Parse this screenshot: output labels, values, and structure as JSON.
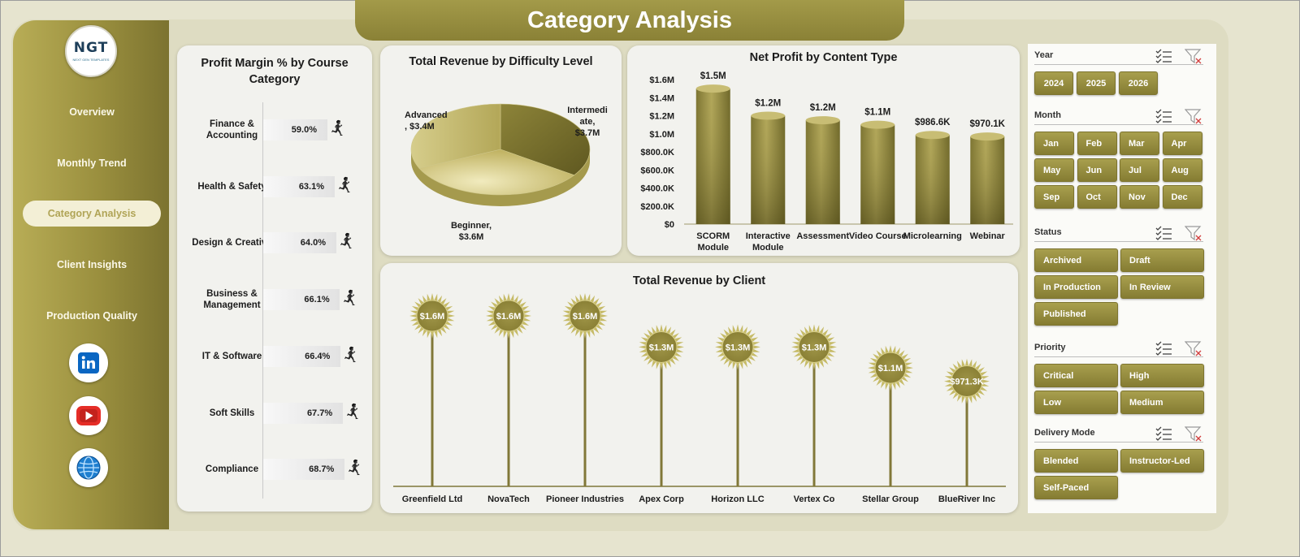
{
  "header": {
    "title": "Category Analysis"
  },
  "logo": {
    "text": "NGT",
    "subtext": "NEXT GEN TEMPLATES"
  },
  "sidebar": {
    "items": [
      {
        "label": "Overview"
      },
      {
        "label": "Monthly Trend"
      },
      {
        "label": "Category Analysis",
        "active": true
      },
      {
        "label": "Client Insights"
      },
      {
        "label": "Production Quality"
      }
    ],
    "social": [
      {
        "icon": "linkedin-icon"
      },
      {
        "icon": "youtube-icon"
      },
      {
        "icon": "globe-icon"
      }
    ]
  },
  "profit_margin": {
    "title_line1": "Profit Margin % by Course",
    "title_line2": "Category",
    "rows": [
      {
        "label1": "Finance &",
        "label2": "Accounting",
        "value": "59.0%"
      },
      {
        "label1": "Health & Safety",
        "label2": "",
        "value": "63.1%"
      },
      {
        "label1": "Design & Creative",
        "label2": "",
        "value": "64.0%"
      },
      {
        "label1": "Business &",
        "label2": "Management",
        "value": "66.1%"
      },
      {
        "label1": "IT & Software",
        "label2": "",
        "value": "66.4%"
      },
      {
        "label1": "Soft Skills",
        "label2": "",
        "value": "67.7%"
      },
      {
        "label1": "Compliance",
        "label2": "",
        "value": "68.7%"
      }
    ]
  },
  "chart_data": [
    {
      "type": "bar",
      "title": "Profit Margin % by Course Category",
      "categories": [
        "Finance & Accounting",
        "Health & Safety",
        "Design & Creative",
        "Business & Management",
        "IT & Software",
        "Soft Skills",
        "Compliance"
      ],
      "values": [
        59.0,
        63.1,
        64.0,
        66.1,
        66.4,
        67.7,
        68.7
      ],
      "orientation": "horizontal"
    },
    {
      "type": "pie",
      "title": "Total Revenue by Difficulty Level",
      "categories": [
        "Advanced",
        "Intermediate",
        "Beginner"
      ],
      "values": [
        3.4,
        3.7,
        3.6
      ],
      "labels": [
        "Advanced\n, $3.4M",
        "Intermedi\nate,\n$3.7M",
        "Beginner,\n$3.6M"
      ]
    },
    {
      "type": "bar",
      "title": "Net Profit by Content Type",
      "categories": [
        "SCORM Module",
        "Interactive Module",
        "Assessment",
        "Video Course",
        "Microlearning",
        "Webinar"
      ],
      "values": [
        1500000,
        1200000,
        1150000,
        1100000,
        986600,
        970100
      ],
      "data_labels": [
        "$1.5M",
        "$1.2M",
        "$1.2M",
        "$1.1M",
        "$986.6K",
        "$970.1K"
      ],
      "ylim": [
        0,
        1600000
      ],
      "y_ticks": [
        "$0",
        "$200.0K",
        "$400.0K",
        "$600.0K",
        "$800.0K",
        "$1.0M",
        "$1.2M",
        "$1.4M",
        "$1.6M"
      ]
    },
    {
      "type": "bar",
      "title": "Total Revenue by Client",
      "categories": [
        "Greenfield Ltd",
        "NovaTech",
        "Pioneer Industries",
        "Apex Corp",
        "Horizon LLC",
        "Vertex Co",
        "Stellar Group",
        "BlueRiver Inc"
      ],
      "values": [
        1600000,
        1600000,
        1600000,
        1300000,
        1300000,
        1300000,
        1100000,
        971300
      ],
      "data_labels": [
        "$1.6M",
        "$1.6M",
        "$1.6M",
        "$1.3M",
        "$1.3M",
        "$1.3M",
        "$1.1M",
        "$971.3K"
      ]
    }
  ],
  "filters": {
    "year": {
      "label": "Year",
      "options": [
        "2024",
        "2025",
        "2026"
      ]
    },
    "month": {
      "label": "Month",
      "options": [
        "Jan",
        "Feb",
        "Mar",
        "Apr",
        "May",
        "Jun",
        "Jul",
        "Aug",
        "Sep",
        "Oct",
        "Nov",
        "Dec"
      ]
    },
    "status": {
      "label": "Status",
      "options": [
        "Archived",
        "Draft",
        "In Production",
        "In Review",
        "Published"
      ]
    },
    "priority": {
      "label": "Priority",
      "options": [
        "Critical",
        "High",
        "Low",
        "Medium"
      ]
    },
    "delivery": {
      "label": "Delivery Mode",
      "options": [
        "Blended",
        "Instructor-Led",
        "Self-Paced"
      ]
    },
    "icons": {
      "multiselect": "multi-select-icon",
      "clear": "clear-filter-icon"
    }
  },
  "colors": {
    "accent": "#968d40",
    "accent_dark": "#7c7330",
    "background": "#e6e4cf"
  }
}
